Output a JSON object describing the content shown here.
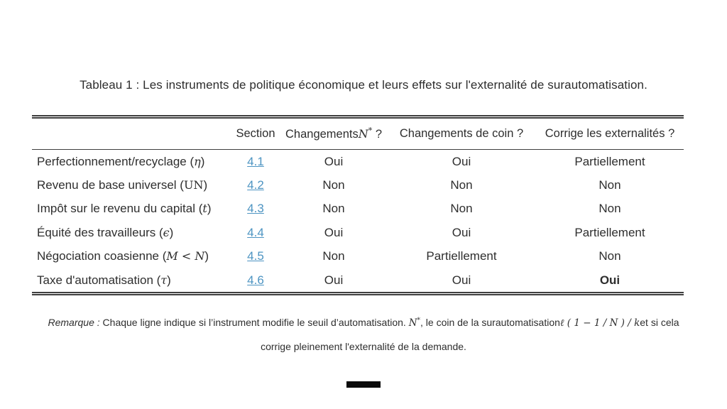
{
  "title": "Tableau 1 : Les instruments de politique économique et leurs effets sur l'externalité de surautomatisation.",
  "table": {
    "headers": {
      "section": "Section",
      "changements_n_pre": "Changements",
      "changements_n_math": "N",
      "changements_n_sup": "*",
      "changements_n_post": " ?",
      "changements_coin": "Changements de coin ?",
      "corrige": "Corrige les externalités ?"
    },
    "rows": [
      {
        "label_pre": "Perfectionnement/recyclage (",
        "label_math": "η",
        "label_post": ")",
        "section": "4.1",
        "changes_n": "Oui",
        "changes_coin": "Oui",
        "corrects": "Partiellement"
      },
      {
        "label_pre": "Revenu de base universel (",
        "label_math": "UN",
        "label_post": ")",
        "section": "4.2",
        "changes_n": "Non",
        "changes_coin": "Non",
        "corrects": "Non"
      },
      {
        "label_pre": "Impôt sur le revenu du capital (",
        "label_math": "t",
        "label_post": ")",
        "section": "4.3",
        "changes_n": "Non",
        "changes_coin": "Non",
        "corrects": "Non"
      },
      {
        "label_pre": "Équité des travailleurs (",
        "label_math": "ϵ",
        "label_post": ")",
        "section": "4.4",
        "changes_n": "Oui",
        "changes_coin": "Oui",
        "corrects": "Partiellement"
      },
      {
        "label_pre": "Négociation coasienne (",
        "label_math": "M < N",
        "label_post": ")",
        "section": "4.5",
        "changes_n": "Non",
        "changes_coin": "Partiellement",
        "corrects": "Non"
      },
      {
        "label_pre": "Taxe d'automatisation (",
        "label_math": "τ",
        "label_post": ")",
        "section": "4.6",
        "changes_n": "Oui",
        "changes_coin": "Oui",
        "corrects": "Oui"
      }
    ]
  },
  "note": {
    "label": "Remarque :",
    "part1": " Chaque ligne indique si l’instrument modifie le seuil d’automatisation. ",
    "math1": "N",
    "math1_sup": "*",
    "part2": ", le coin de la surautomatisation",
    "math2": "ℓ ( 1 − 1 / N )  / k",
    "part3": "et si cela",
    "line2": "corrige pleinement l'externalité de la demande."
  },
  "colors": {
    "link": "#4d94c2",
    "text": "#2e2e2e",
    "rule": "#3f3f3f"
  }
}
